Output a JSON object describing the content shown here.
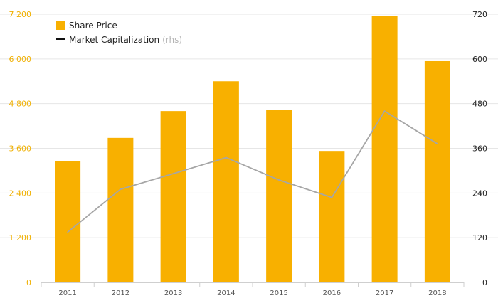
{
  "chart_data": {
    "type": "bar",
    "categories": [
      "2011",
      "2012",
      "2013",
      "2014",
      "2015",
      "2016",
      "2017",
      "2018"
    ],
    "series": [
      {
        "name": "Share Price",
        "kind": "bar",
        "axis": "left",
        "color": "#f8b000",
        "values": [
          3250,
          3880,
          4600,
          5400,
          4640,
          3530,
          7150,
          5940
        ]
      },
      {
        "name": "Market Capitalization",
        "name_suffix": "(rhs)",
        "kind": "line",
        "axis": "right",
        "color": "#a6a6a6",
        "values": [
          135,
          250,
          292,
          335,
          275,
          228,
          460,
          372
        ]
      }
    ],
    "y_left": {
      "lim": [
        0,
        7200
      ],
      "ticks": [
        0,
        1200,
        2400,
        3600,
        4800,
        6000,
        7200
      ],
      "tick_labels": [
        "0",
        "1 200",
        "2 400",
        "3 600",
        "4 800",
        "6 000",
        "7 200"
      ],
      "color": "#f0b000"
    },
    "y_right": {
      "lim": [
        0,
        720
      ],
      "ticks": [
        0,
        120,
        240,
        360,
        480,
        600,
        720
      ],
      "tick_labels": [
        "0",
        "120",
        "240",
        "360",
        "480",
        "600",
        "720"
      ],
      "color": "#222222"
    },
    "grid": true,
    "legend_position": "top-left",
    "title": "",
    "xlabel": "",
    "ylabel": ""
  }
}
